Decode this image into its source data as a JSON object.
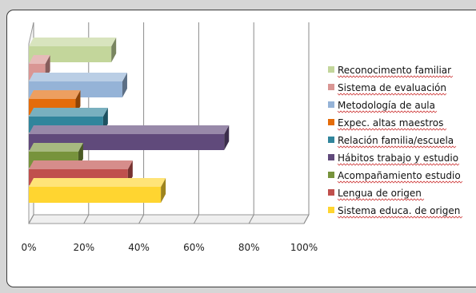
{
  "chart_data": {
    "type": "bar",
    "orientation": "horizontal",
    "style": "3d",
    "xlim": [
      0,
      1
    ],
    "x_ticks": [
      "0%",
      "20%",
      "40%",
      "60%",
      "80%",
      "100%"
    ],
    "grid": true,
    "legend_position": "right",
    "series": [
      {
        "name": "Reconocimento familiar",
        "value": 0.3,
        "color": "#c3d69b"
      },
      {
        "name": "Sistema de evaluación",
        "value": 0.06,
        "color": "#d99694"
      },
      {
        "name": "Metodología de aula",
        "value": 0.34,
        "color": "#95b3d7"
      },
      {
        "name": "Expec. altas maestros",
        "value": 0.17,
        "color": "#e46c0a"
      },
      {
        "name": "Relación familia/escuela",
        "value": 0.27,
        "color": "#31859c"
      },
      {
        "name": "Hábitos trabajo y estudio",
        "value": 0.71,
        "color": "#604a7b"
      },
      {
        "name": "Acompañamiento estudio",
        "value": 0.18,
        "color": "#77933c"
      },
      {
        "name": "Lengua de origen",
        "value": 0.36,
        "color": "#c0504d"
      },
      {
        "name": "Sistema educa. de origen",
        "value": 0.48,
        "color": "#ffd530"
      }
    ]
  }
}
